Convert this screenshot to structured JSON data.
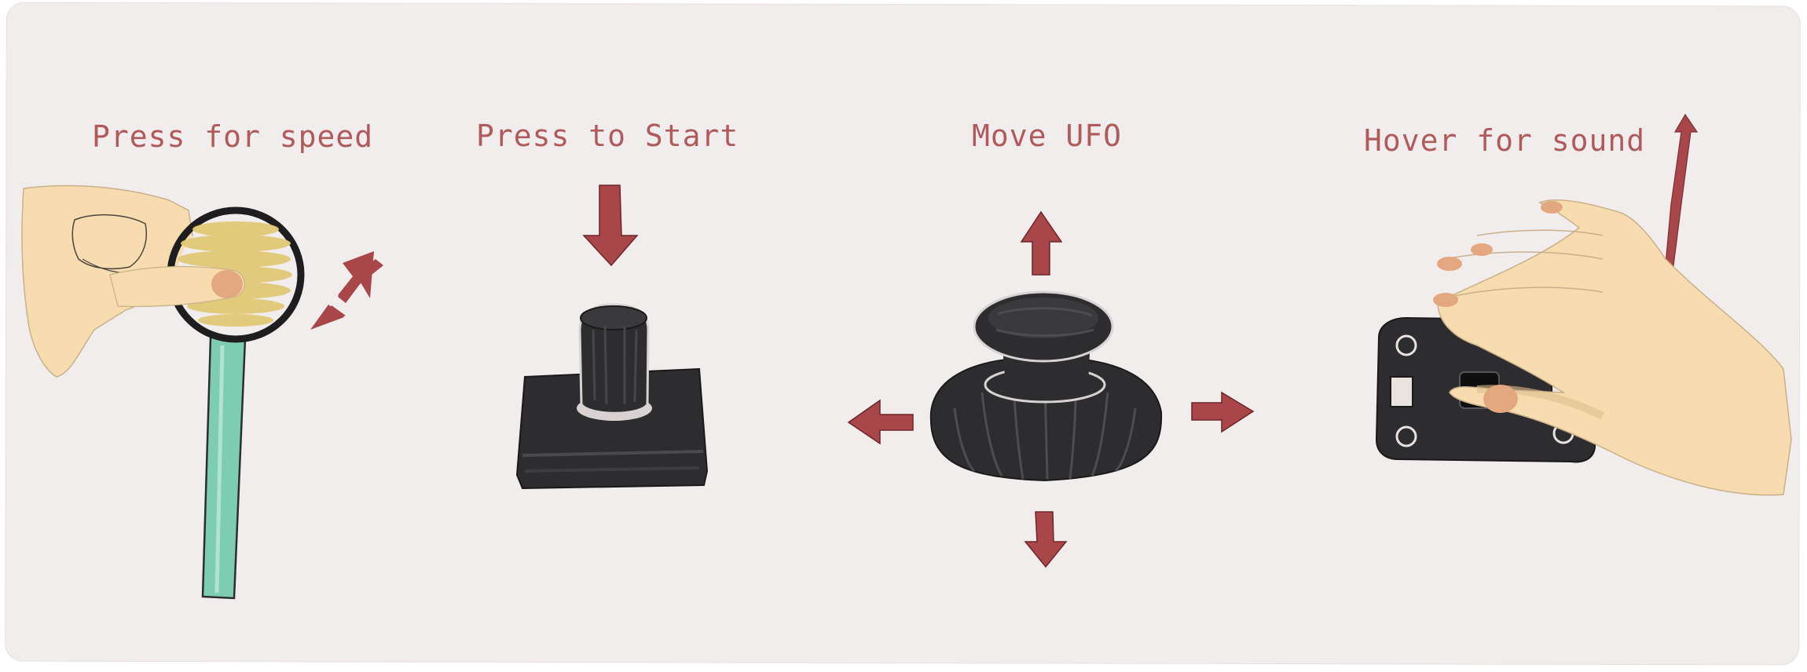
{
  "captions": {
    "speed": "Press for speed",
    "start": "Press to Start",
    "move": "Move UFO",
    "sound": "Hover for sound"
  },
  "colors": {
    "background": "#f1eded",
    "caption_text": "#b05a5c",
    "arrow": "#a8464a",
    "device": "#2d2c2e",
    "skin": "#f6dcae",
    "slider_track": "#7dcdb2",
    "pad": "#e2c977"
  },
  "icons": [
    "hand-pressing-slider-icon",
    "double-arrow-diagonal-icon",
    "arrow-down-icon",
    "push-button-icon",
    "joystick-icon",
    "arrow-up-icon",
    "arrow-left-icon",
    "arrow-right-icon",
    "hand-hover-sensor-icon",
    "double-arrow-vertical-icon"
  ]
}
